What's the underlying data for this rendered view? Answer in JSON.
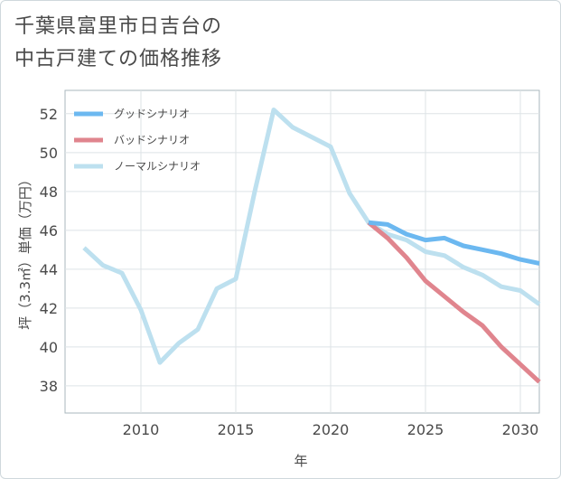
{
  "chart_data": {
    "type": "line",
    "title": [
      "千葉県富里市日吉台の",
      "中古戸建ての価格推移"
    ],
    "xlabel": "年",
    "ylabel": "坪（3.3㎡）単価（万円）",
    "xlim": [
      2006,
      2031
    ],
    "ylim": [
      36.6,
      53.2
    ],
    "xticks": [
      2010,
      2015,
      2020,
      2025,
      2030
    ],
    "yticks": [
      38,
      40,
      42,
      44,
      46,
      48,
      50,
      52
    ],
    "grid": true,
    "legend_position": "top-left",
    "series": [
      {
        "name": "グッドシナリオ",
        "color": "#6cb8f0",
        "x": [
          2022,
          2023,
          2024,
          2025,
          2026,
          2027,
          2028,
          2029,
          2030,
          2031
        ],
        "values": [
          46.4,
          46.3,
          45.8,
          45.5,
          45.6,
          45.2,
          45.0,
          44.8,
          44.5,
          44.3
        ]
      },
      {
        "name": "バッドシナリオ",
        "color": "#e0858e",
        "x": [
          2022,
          2023,
          2024,
          2025,
          2026,
          2027,
          2028,
          2029,
          2030,
          2031
        ],
        "values": [
          46.4,
          45.6,
          44.6,
          43.4,
          42.6,
          41.8,
          41.1,
          40.0,
          39.1,
          38.2
        ]
      },
      {
        "name": "ノーマルシナリオ",
        "color": "#bde0ef",
        "x": [
          2007,
          2008,
          2009,
          2010,
          2011,
          2012,
          2013,
          2014,
          2015,
          2016,
          2017,
          2018,
          2019,
          2020,
          2021,
          2022,
          2023,
          2024,
          2025,
          2026,
          2027,
          2028,
          2029,
          2030,
          2031
        ],
        "values": [
          45.1,
          44.2,
          43.8,
          41.9,
          39.2,
          40.2,
          40.9,
          43.0,
          43.5,
          48.0,
          52.2,
          51.3,
          50.8,
          50.3,
          47.9,
          46.4,
          45.8,
          45.5,
          44.9,
          44.7,
          44.1,
          43.7,
          43.1,
          42.9,
          42.2
        ]
      }
    ]
  }
}
